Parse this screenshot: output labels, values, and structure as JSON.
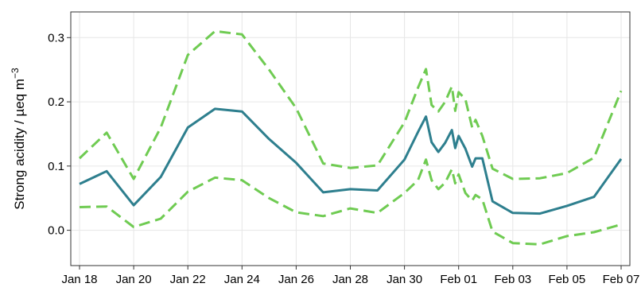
{
  "chart_data": {
    "type": "line",
    "title": "",
    "xlabel": "",
    "ylabel": "Strong acidity / µeq  m",
    "ylabel_superscript": "−3",
    "x_ticks": [
      "Jan 18",
      "Jan 20",
      "Jan 22",
      "Jan 24",
      "Jan 26",
      "Jan 28",
      "Jan 30",
      "Feb 01",
      "Feb 03",
      "Feb 05",
      "Feb 07"
    ],
    "y_ticks": [
      "0.0",
      "0.1",
      "0.2",
      "0.3"
    ],
    "xlim": [
      "2024-01-18",
      "2024-02-07"
    ],
    "ylim": [
      -0.055,
      0.34
    ],
    "grid": true,
    "series": [
      {
        "color": "#2e7f8e",
        "style": "solid",
        "x": [
          "2024-01-18",
          "2024-01-19",
          "2024-01-20",
          "2024-01-21",
          "2024-01-22",
          "2024-01-23",
          "2024-01-24",
          "2024-01-25",
          "2024-01-26",
          "2024-01-27",
          "2024-01-28",
          "2024-01-29",
          "2024-01-30",
          "2024-01-30 12:00",
          "2024-01-30 19:00",
          "2024-01-31",
          "2024-01-31 06:00",
          "2024-01-31 12:00",
          "2024-01-31 18:00",
          "2024-01-31 21:00",
          "2024-02-01",
          "2024-02-01 06:00",
          "2024-02-01 12:00",
          "2024-02-01 15:00",
          "2024-02-01 21:00",
          "2024-02-02 06:00",
          "2024-02-03",
          "2024-02-04",
          "2024-02-05",
          "2024-02-06",
          "2024-02-07"
        ],
        "y": [
          0.072,
          0.092,
          0.039,
          0.083,
          0.16,
          0.189,
          0.185,
          0.142,
          0.105,
          0.059,
          0.064,
          0.062,
          0.11,
          0.153,
          0.177,
          0.137,
          0.122,
          0.136,
          0.156,
          0.128,
          0.147,
          0.127,
          0.099,
          0.112,
          0.112,
          0.045,
          0.027,
          0.026,
          0.038,
          0.052,
          0.111
        ]
      },
      {
        "color": "#6fcb52",
        "style": "dashed",
        "x": [
          "2024-01-18",
          "2024-01-19",
          "2024-01-20",
          "2024-01-21",
          "2024-01-22",
          "2024-01-23",
          "2024-01-24",
          "2024-01-25",
          "2024-01-26",
          "2024-01-27",
          "2024-01-28",
          "2024-01-29",
          "2024-01-30",
          "2024-01-30 12:00",
          "2024-01-30 19:00",
          "2024-01-31",
          "2024-01-31 06:00",
          "2024-01-31 12:00",
          "2024-01-31 18:00",
          "2024-01-31 21:00",
          "2024-02-01",
          "2024-02-01 06:00",
          "2024-02-01 12:00",
          "2024-02-01 15:00",
          "2024-02-01 21:00",
          "2024-02-02 06:00",
          "2024-02-03",
          "2024-02-04",
          "2024-02-05",
          "2024-02-06",
          "2024-02-07"
        ],
        "y": [
          0.112,
          0.152,
          0.08,
          0.16,
          0.273,
          0.31,
          0.305,
          0.25,
          0.19,
          0.104,
          0.097,
          0.101,
          0.168,
          0.222,
          0.251,
          0.195,
          0.185,
          0.2,
          0.224,
          0.186,
          0.215,
          0.204,
          0.16,
          0.172,
          0.147,
          0.096,
          0.08,
          0.081,
          0.089,
          0.113,
          0.217
        ]
      },
      {
        "color": "#6fcb52",
        "style": "dashed",
        "x": [
          "2024-01-18",
          "2024-01-19",
          "2024-01-20",
          "2024-01-21",
          "2024-01-22",
          "2024-01-23",
          "2024-01-24",
          "2024-01-25",
          "2024-01-26",
          "2024-01-27",
          "2024-01-28",
          "2024-01-29",
          "2024-01-30",
          "2024-01-30 12:00",
          "2024-01-30 19:00",
          "2024-01-31",
          "2024-01-31 06:00",
          "2024-01-31 12:00",
          "2024-01-31 18:00",
          "2024-01-31 21:00",
          "2024-02-01",
          "2024-02-01 06:00",
          "2024-02-01 12:00",
          "2024-02-01 15:00",
          "2024-02-01 21:00",
          "2024-02-02 06:00",
          "2024-02-03",
          "2024-02-04",
          "2024-02-05",
          "2024-02-06",
          "2024-02-07"
        ],
        "y": [
          0.036,
          0.037,
          0.005,
          0.018,
          0.06,
          0.082,
          0.078,
          0.05,
          0.028,
          0.022,
          0.034,
          0.027,
          0.058,
          0.078,
          0.11,
          0.078,
          0.064,
          0.074,
          0.095,
          0.073,
          0.087,
          0.058,
          0.046,
          0.055,
          0.048,
          -0.002,
          -0.02,
          -0.022,
          -0.009,
          -0.003,
          0.009
        ]
      }
    ]
  }
}
